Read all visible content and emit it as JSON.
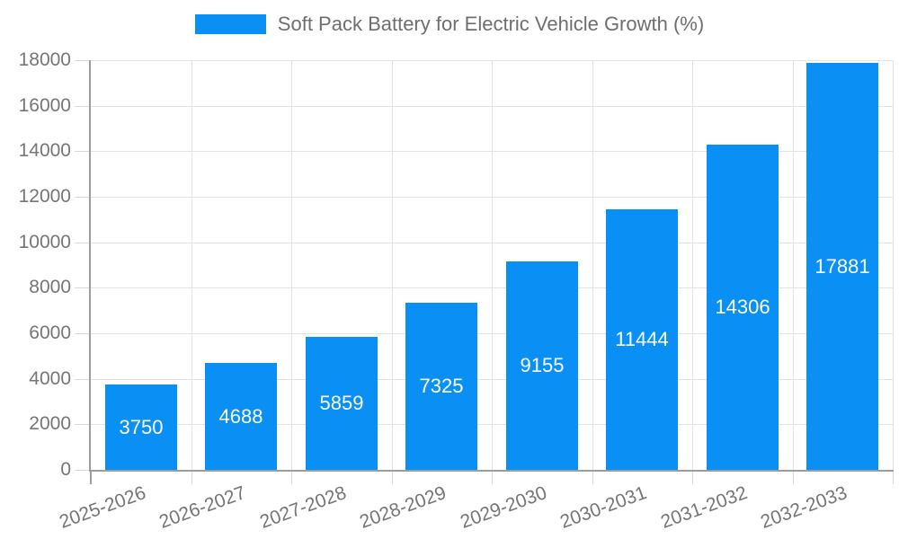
{
  "legend": {
    "label": "Soft Pack Battery for Electric Vehicle Growth (%)"
  },
  "chart_data": {
    "type": "bar",
    "title": "Soft Pack Battery for Electric Vehicle Growth (%)",
    "categories": [
      "2025-2026",
      "2026-2027",
      "2027-2028",
      "2028-2029",
      "2029-2030",
      "2030-2031",
      "2031-2032",
      "2032-2033"
    ],
    "values": [
      3750,
      4688,
      5859,
      7325,
      9155,
      11444,
      14306,
      17881
    ],
    "xlabel": "",
    "ylabel": "",
    "ylim": [
      0,
      18000
    ],
    "yticks": [
      0,
      2000,
      4000,
      6000,
      8000,
      10000,
      12000,
      14000,
      16000,
      18000
    ],
    "grid": true,
    "legend_position": "top",
    "x_label_rotation_deg": -20,
    "value_labels_inside_bars": true
  },
  "colors": {
    "bar": "#0a90f5",
    "grid": "#e3e3e3",
    "axis": "#9c9c9c",
    "tick": "#d8d8d8",
    "text": "#757575",
    "value_label": "#ffffff",
    "background": "#ffffff"
  }
}
